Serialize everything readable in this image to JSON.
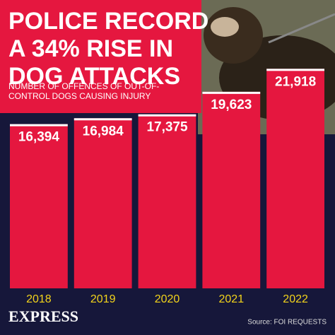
{
  "chart_data": {
    "type": "bar",
    "title_lines": [
      "POLICE RECORD",
      "A 34% RISE IN",
      "DOG ATTACKS"
    ],
    "subtitle_lines": [
      "NUMBER OF OFFENCES OF OUT-OF-",
      "CONTROL DOGS CAUSING INJURY"
    ],
    "categories": [
      "2018",
      "2019",
      "2020",
      "2021",
      "2022"
    ],
    "values": [
      16394,
      16984,
      17375,
      19623,
      21918
    ],
    "value_labels": [
      "16,394",
      "16,984",
      "17,375",
      "19,623",
      "21,918"
    ],
    "color": "#e5173f",
    "ylim": [
      0,
      23000
    ],
    "brand": "EXPRESS",
    "source": "Source: FOI REQUESTS"
  }
}
